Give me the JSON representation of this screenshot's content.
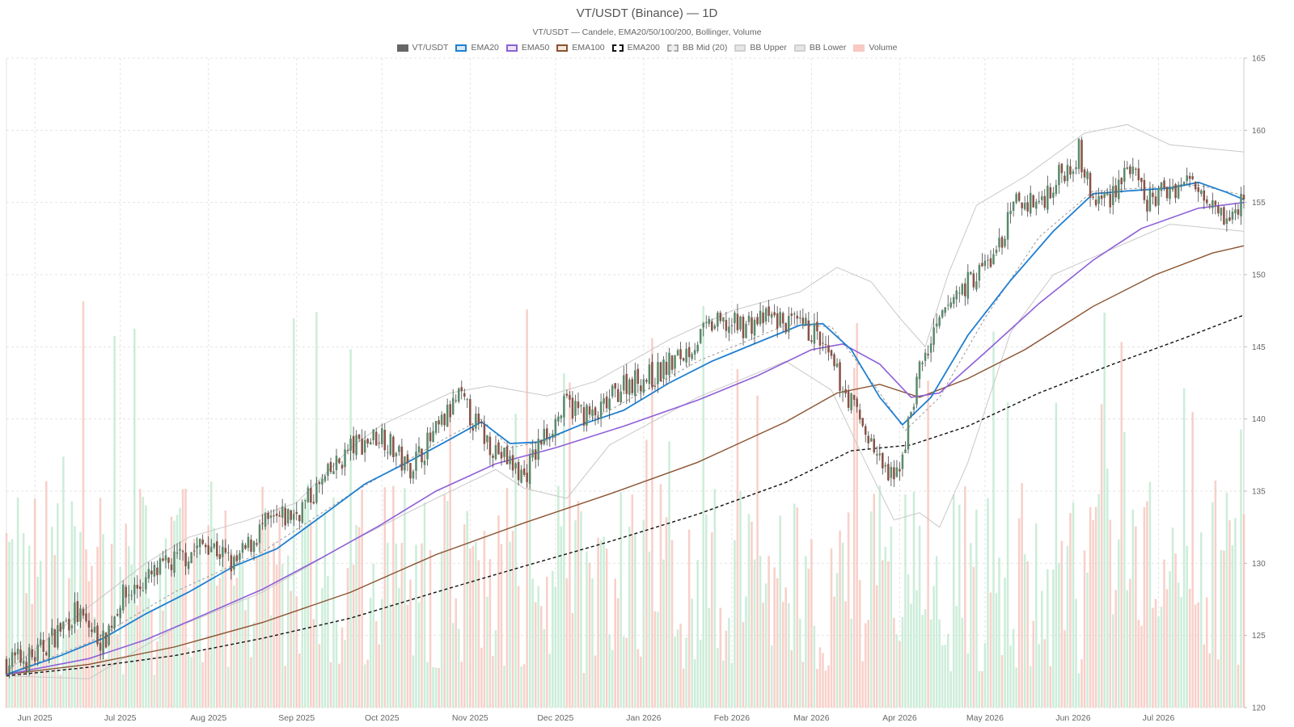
{
  "title": "VT/USDT (Binance) — 1D",
  "subtitle": "VT/USDT — Candele, EMA20/50/100/200, Bollinger, Volume",
  "legend": [
    {
      "label": "VT/USDT",
      "icon": "candle-swatch",
      "fill": "#666666",
      "stroke": "#666666",
      "dash": false
    },
    {
      "label": "EMA20",
      "icon": "line-swatch",
      "fill": "#dbe9f6",
      "stroke": "#1f7fd1",
      "dash": false
    },
    {
      "label": "EMA50",
      "icon": "line-swatch",
      "fill": "#ece4f8",
      "stroke": "#8e5fd8",
      "dash": false
    },
    {
      "label": "EMA100",
      "icon": "line-swatch",
      "fill": "#f3e7df",
      "stroke": "#8a5230",
      "dash": false
    },
    {
      "label": "EMA200",
      "icon": "line-swatch",
      "fill": "#ffffff",
      "stroke": "#111111",
      "dash": true
    },
    {
      "label": "BB Mid (20)",
      "icon": "line-swatch",
      "fill": "#eeeeee",
      "stroke": "#aaaaaa",
      "dash": true
    },
    {
      "label": "BB Upper",
      "icon": "line-swatch",
      "fill": "#e6e6e6",
      "stroke": "#d0d0d0",
      "dash": false
    },
    {
      "label": "BB Lower",
      "icon": "line-swatch",
      "fill": "#e6e6e6",
      "stroke": "#d0d0d0",
      "dash": false
    },
    {
      "label": "Volume",
      "icon": "bar-swatch",
      "fill": "#f7c9c2",
      "stroke": "#f7c9c2",
      "dash": false
    }
  ],
  "chart_data": {
    "type": "candlestick",
    "interval": "1D",
    "x_range": [
      "2025-05-22",
      "2026-07-31"
    ],
    "ylim": [
      120,
      165
    ],
    "y_ticks": [
      120,
      125,
      130,
      135,
      140,
      145,
      150,
      155,
      160,
      165
    ],
    "y_axis_position": "right",
    "x_ticks": [
      {
        "label": "Jun 2025",
        "date": "2025-06-01"
      },
      {
        "label": "Jul 2025",
        "date": "2025-07-01"
      },
      {
        "label": "Aug 2025",
        "date": "2025-08-01"
      },
      {
        "label": "Sep 2025",
        "date": "2025-09-01"
      },
      {
        "label": "Oct 2025",
        "date": "2025-10-01"
      },
      {
        "label": "Nov 2025",
        "date": "2025-11-01"
      },
      {
        "label": "Dec 2025",
        "date": "2025-12-01"
      },
      {
        "label": "Jan 2026",
        "date": "2026-01-01"
      },
      {
        "label": "Feb 2026",
        "date": "2026-02-01"
      },
      {
        "label": "Mar 2026",
        "date": "2026-03-01"
      },
      {
        "label": "Apr 2026",
        "date": "2026-04-01"
      },
      {
        "label": "May 2026",
        "date": "2026-05-01"
      },
      {
        "label": "Jun 2026",
        "date": "2026-06-01"
      },
      {
        "label": "Jul 2026",
        "date": "2026-07-01"
      }
    ],
    "grid": true,
    "legend_position": "top",
    "close_path": [
      [
        "2025-05-22",
        123.2
      ],
      [
        "2025-06-01",
        123.5
      ],
      [
        "2025-06-15",
        126.6
      ],
      [
        "2025-06-25",
        124.5
      ],
      [
        "2025-07-01",
        127.5
      ],
      [
        "2025-07-15",
        129.5
      ],
      [
        "2025-08-01",
        131.5
      ],
      [
        "2025-08-10",
        129.8
      ],
      [
        "2025-08-20",
        132.5
      ],
      [
        "2025-09-01",
        133.5
      ],
      [
        "2025-09-10",
        135.5
      ],
      [
        "2025-09-20",
        138.0
      ],
      [
        "2025-10-01",
        139.0
      ],
      [
        "2025-10-10",
        136.5
      ],
      [
        "2025-10-20",
        139.0
      ],
      [
        "2025-10-28",
        141.5
      ],
      [
        "2025-11-05",
        139.0
      ],
      [
        "2025-11-12",
        137.5
      ],
      [
        "2025-11-20",
        136.0
      ],
      [
        "2025-11-26",
        138.5
      ],
      [
        "2025-12-05",
        141.0
      ],
      [
        "2025-12-15",
        140.0
      ],
      [
        "2025-12-25",
        142.5
      ],
      [
        "2026-01-05",
        143.0
      ],
      [
        "2026-01-15",
        144.5
      ],
      [
        "2026-01-25",
        146.5
      ],
      [
        "2026-02-05",
        146.5
      ],
      [
        "2026-02-15",
        147.0
      ],
      [
        "2026-02-22",
        146.5
      ],
      [
        "2026-03-02",
        146.0
      ],
      [
        "2026-03-10",
        143.0
      ],
      [
        "2026-03-18",
        140.0
      ],
      [
        "2026-03-25",
        137.0
      ],
      [
        "2026-03-30",
        135.5
      ],
      [
        "2026-04-03",
        138.5
      ],
      [
        "2026-04-08",
        143.5
      ],
      [
        "2026-04-15",
        146.5
      ],
      [
        "2026-04-20",
        148.5
      ],
      [
        "2026-04-28",
        150.0
      ],
      [
        "2026-05-05",
        151.5
      ],
      [
        "2026-05-12",
        155.0
      ],
      [
        "2026-05-20",
        155.0
      ],
      [
        "2026-05-28",
        157.0
      ],
      [
        "2026-06-03",
        158.5
      ],
      [
        "2026-06-08",
        155.0
      ],
      [
        "2026-06-14",
        155.5
      ],
      [
        "2026-06-20",
        157.5
      ],
      [
        "2026-06-27",
        155.0
      ],
      [
        "2026-07-05",
        156.0
      ],
      [
        "2026-07-12",
        156.5
      ],
      [
        "2026-07-20",
        155.5
      ],
      [
        "2026-07-26",
        153.5
      ],
      [
        "2026-07-31",
        155.5
      ]
    ],
    "ema20": [
      [
        "2025-05-22",
        122.3
      ],
      [
        "2025-06-10",
        123.6
      ],
      [
        "2025-06-25",
        124.8
      ],
      [
        "2025-07-10",
        126.5
      ],
      [
        "2025-07-25",
        128.0
      ],
      [
        "2025-08-10",
        129.8
      ],
      [
        "2025-08-25",
        131.0
      ],
      [
        "2025-09-10",
        133.3
      ],
      [
        "2025-09-25",
        135.5
      ],
      [
        "2025-10-10",
        137.0
      ],
      [
        "2025-10-25",
        138.6
      ],
      [
        "2025-11-05",
        139.8
      ],
      [
        "2025-11-15",
        138.3
      ],
      [
        "2025-11-25",
        138.4
      ],
      [
        "2025-12-10",
        139.6
      ],
      [
        "2025-12-25",
        140.6
      ],
      [
        "2026-01-10",
        142.5
      ],
      [
        "2026-01-25",
        144.0
      ],
      [
        "2026-02-10",
        145.3
      ],
      [
        "2026-02-25",
        146.5
      ],
      [
        "2026-03-05",
        146.6
      ],
      [
        "2026-03-15",
        144.8
      ],
      [
        "2026-03-25",
        141.5
      ],
      [
        "2026-04-02",
        139.6
      ],
      [
        "2026-04-12",
        141.5
      ],
      [
        "2026-04-25",
        145.8
      ],
      [
        "2026-05-10",
        149.6
      ],
      [
        "2026-05-25",
        153.0
      ],
      [
        "2026-06-08",
        155.6
      ],
      [
        "2026-06-20",
        155.8
      ],
      [
        "2026-07-05",
        156.0
      ],
      [
        "2026-07-15",
        156.4
      ],
      [
        "2026-07-25",
        155.7
      ],
      [
        "2026-07-31",
        155.2
      ]
    ],
    "ema50": [
      [
        "2025-05-22",
        122.3
      ],
      [
        "2025-06-20",
        123.4
      ],
      [
        "2025-07-10",
        124.7
      ],
      [
        "2025-07-30",
        126.4
      ],
      [
        "2025-08-20",
        128.2
      ],
      [
        "2025-09-10",
        130.4
      ],
      [
        "2025-09-30",
        132.6
      ],
      [
        "2025-10-20",
        135.0
      ],
      [
        "2025-11-10",
        136.9
      ],
      [
        "2025-12-01",
        138.0
      ],
      [
        "2025-12-25",
        139.5
      ],
      [
        "2026-01-20",
        141.3
      ],
      [
        "2026-02-10",
        143.0
      ],
      [
        "2026-03-01",
        144.8
      ],
      [
        "2026-03-12",
        145.2
      ],
      [
        "2026-03-25",
        143.8
      ],
      [
        "2026-04-05",
        141.5
      ],
      [
        "2026-04-15",
        141.8
      ],
      [
        "2026-05-01",
        144.6
      ],
      [
        "2026-05-20",
        148.0
      ],
      [
        "2026-06-08",
        151.0
      ],
      [
        "2026-06-25",
        153.2
      ],
      [
        "2026-07-15",
        154.6
      ],
      [
        "2026-07-31",
        155.0
      ]
    ],
    "ema100": [
      [
        "2025-05-22",
        122.3
      ],
      [
        "2025-06-20",
        123.0
      ],
      [
        "2025-07-20",
        124.2
      ],
      [
        "2025-08-20",
        125.9
      ],
      [
        "2025-09-20",
        128.0
      ],
      [
        "2025-10-20",
        130.6
      ],
      [
        "2025-11-20",
        132.8
      ],
      [
        "2025-12-20",
        134.8
      ],
      [
        "2026-01-20",
        137.0
      ],
      [
        "2026-02-20",
        139.8
      ],
      [
        "2026-03-10",
        141.8
      ],
      [
        "2026-03-25",
        142.4
      ],
      [
        "2026-04-08",
        141.5
      ],
      [
        "2026-04-25",
        142.8
      ],
      [
        "2026-05-15",
        144.8
      ],
      [
        "2026-06-08",
        147.8
      ],
      [
        "2026-06-30",
        150.0
      ],
      [
        "2026-07-20",
        151.5
      ],
      [
        "2026-07-31",
        152.0
      ]
    ],
    "ema200": [
      [
        "2025-05-22",
        122.2
      ],
      [
        "2025-06-20",
        122.8
      ],
      [
        "2025-07-20",
        123.6
      ],
      [
        "2025-08-20",
        124.8
      ],
      [
        "2025-09-20",
        126.2
      ],
      [
        "2025-10-20",
        128.0
      ],
      [
        "2025-11-20",
        129.8
      ],
      [
        "2025-12-20",
        131.5
      ],
      [
        "2026-01-20",
        133.4
      ],
      [
        "2026-02-20",
        135.6
      ],
      [
        "2026-03-15",
        137.8
      ],
      [
        "2026-04-05",
        138.2
      ],
      [
        "2026-04-25",
        139.5
      ],
      [
        "2026-05-20",
        141.8
      ],
      [
        "2026-06-15",
        143.8
      ],
      [
        "2026-07-10",
        145.6
      ],
      [
        "2026-07-31",
        147.2
      ]
    ],
    "bb_mid": [
      [
        "2025-05-22",
        122.3
      ],
      [
        "2025-06-20",
        124.5
      ],
      [
        "2025-07-20",
        128.0
      ],
      [
        "2025-08-20",
        130.8
      ],
      [
        "2025-09-20",
        134.8
      ],
      [
        "2025-10-20",
        138.3
      ],
      [
        "2025-11-05",
        140.0
      ],
      [
        "2025-11-15",
        138.0
      ],
      [
        "2025-11-28",
        138.5
      ],
      [
        "2025-12-20",
        140.6
      ],
      [
        "2026-01-20",
        144.0
      ],
      [
        "2026-02-20",
        146.5
      ],
      [
        "2026-03-08",
        146.4
      ],
      [
        "2026-03-25",
        141.8
      ],
      [
        "2026-04-03",
        139.2
      ],
      [
        "2026-04-15",
        141.5
      ],
      [
        "2026-05-01",
        147.0
      ],
      [
        "2026-05-20",
        152.6
      ],
      [
        "2026-06-08",
        155.8
      ],
      [
        "2026-06-25",
        156.0
      ],
      [
        "2026-07-15",
        156.2
      ],
      [
        "2026-07-31",
        155.5
      ]
    ],
    "bb_upper": [
      [
        "2025-05-22",
        122.5
      ],
      [
        "2025-06-20",
        127.0
      ],
      [
        "2025-07-10",
        130.0
      ],
      [
        "2025-07-25",
        131.8
      ],
      [
        "2025-08-15",
        133.0
      ],
      [
        "2025-09-01",
        134.2
      ],
      [
        "2025-09-20",
        138.0
      ],
      [
        "2025-10-01",
        139.6
      ],
      [
        "2025-10-25",
        141.8
      ],
      [
        "2025-11-08",
        142.3
      ],
      [
        "2025-11-28",
        141.6
      ],
      [
        "2025-12-15",
        142.6
      ],
      [
        "2026-01-10",
        145.5
      ],
      [
        "2026-02-01",
        147.5
      ],
      [
        "2026-02-25",
        148.8
      ],
      [
        "2026-03-10",
        150.5
      ],
      [
        "2026-03-22",
        149.5
      ],
      [
        "2026-04-01",
        147.0
      ],
      [
        "2026-04-10",
        145.0
      ],
      [
        "2026-04-18",
        150.0
      ],
      [
        "2026-04-28",
        154.8
      ],
      [
        "2026-05-15",
        156.8
      ],
      [
        "2026-06-05",
        159.8
      ],
      [
        "2026-06-20",
        160.4
      ],
      [
        "2026-07-05",
        159.0
      ],
      [
        "2026-07-31",
        158.5
      ]
    ],
    "bb_lower": [
      [
        "2025-05-22",
        122.2
      ],
      [
        "2025-06-20",
        122.0
      ],
      [
        "2025-07-20",
        125.5
      ],
      [
        "2025-08-20",
        128.0
      ],
      [
        "2025-09-20",
        131.5
      ],
      [
        "2025-10-20",
        134.5
      ],
      [
        "2025-11-10",
        136.5
      ],
      [
        "2025-11-20",
        135.2
      ],
      [
        "2025-12-05",
        134.5
      ],
      [
        "2025-12-20",
        138.2
      ],
      [
        "2026-01-20",
        141.5
      ],
      [
        "2026-02-20",
        144.0
      ],
      [
        "2026-03-08",
        142.0
      ],
      [
        "2026-03-20",
        137.0
      ],
      [
        "2026-03-30",
        133.0
      ],
      [
        "2026-04-08",
        133.5
      ],
      [
        "2026-04-15",
        132.5
      ],
      [
        "2026-04-25",
        137.0
      ],
      [
        "2026-05-10",
        146.0
      ],
      [
        "2026-05-25",
        150.0
      ],
      [
        "2026-06-15",
        151.8
      ],
      [
        "2026-07-05",
        153.5
      ],
      [
        "2026-07-31",
        153.0
      ]
    ],
    "volume_bars": "one semi-transparent bar per day behind the price, green on up days, red on down days; no volume axis printed"
  },
  "colors": {
    "up": "#5a8a6c",
    "down": "#8a5246",
    "wick": "#444444",
    "vol_up": "#bfe8cf",
    "vol_down": "#f6c4bc",
    "grid": "#e4e4e4",
    "ema20": "#1f7fd1",
    "ema50": "#8e5fd8",
    "ema100": "#8a5230",
    "ema200": "#111111",
    "bb_mid": "#9a9a9a",
    "bb_band": "#c8c8c8",
    "axis_text": "#666666"
  }
}
